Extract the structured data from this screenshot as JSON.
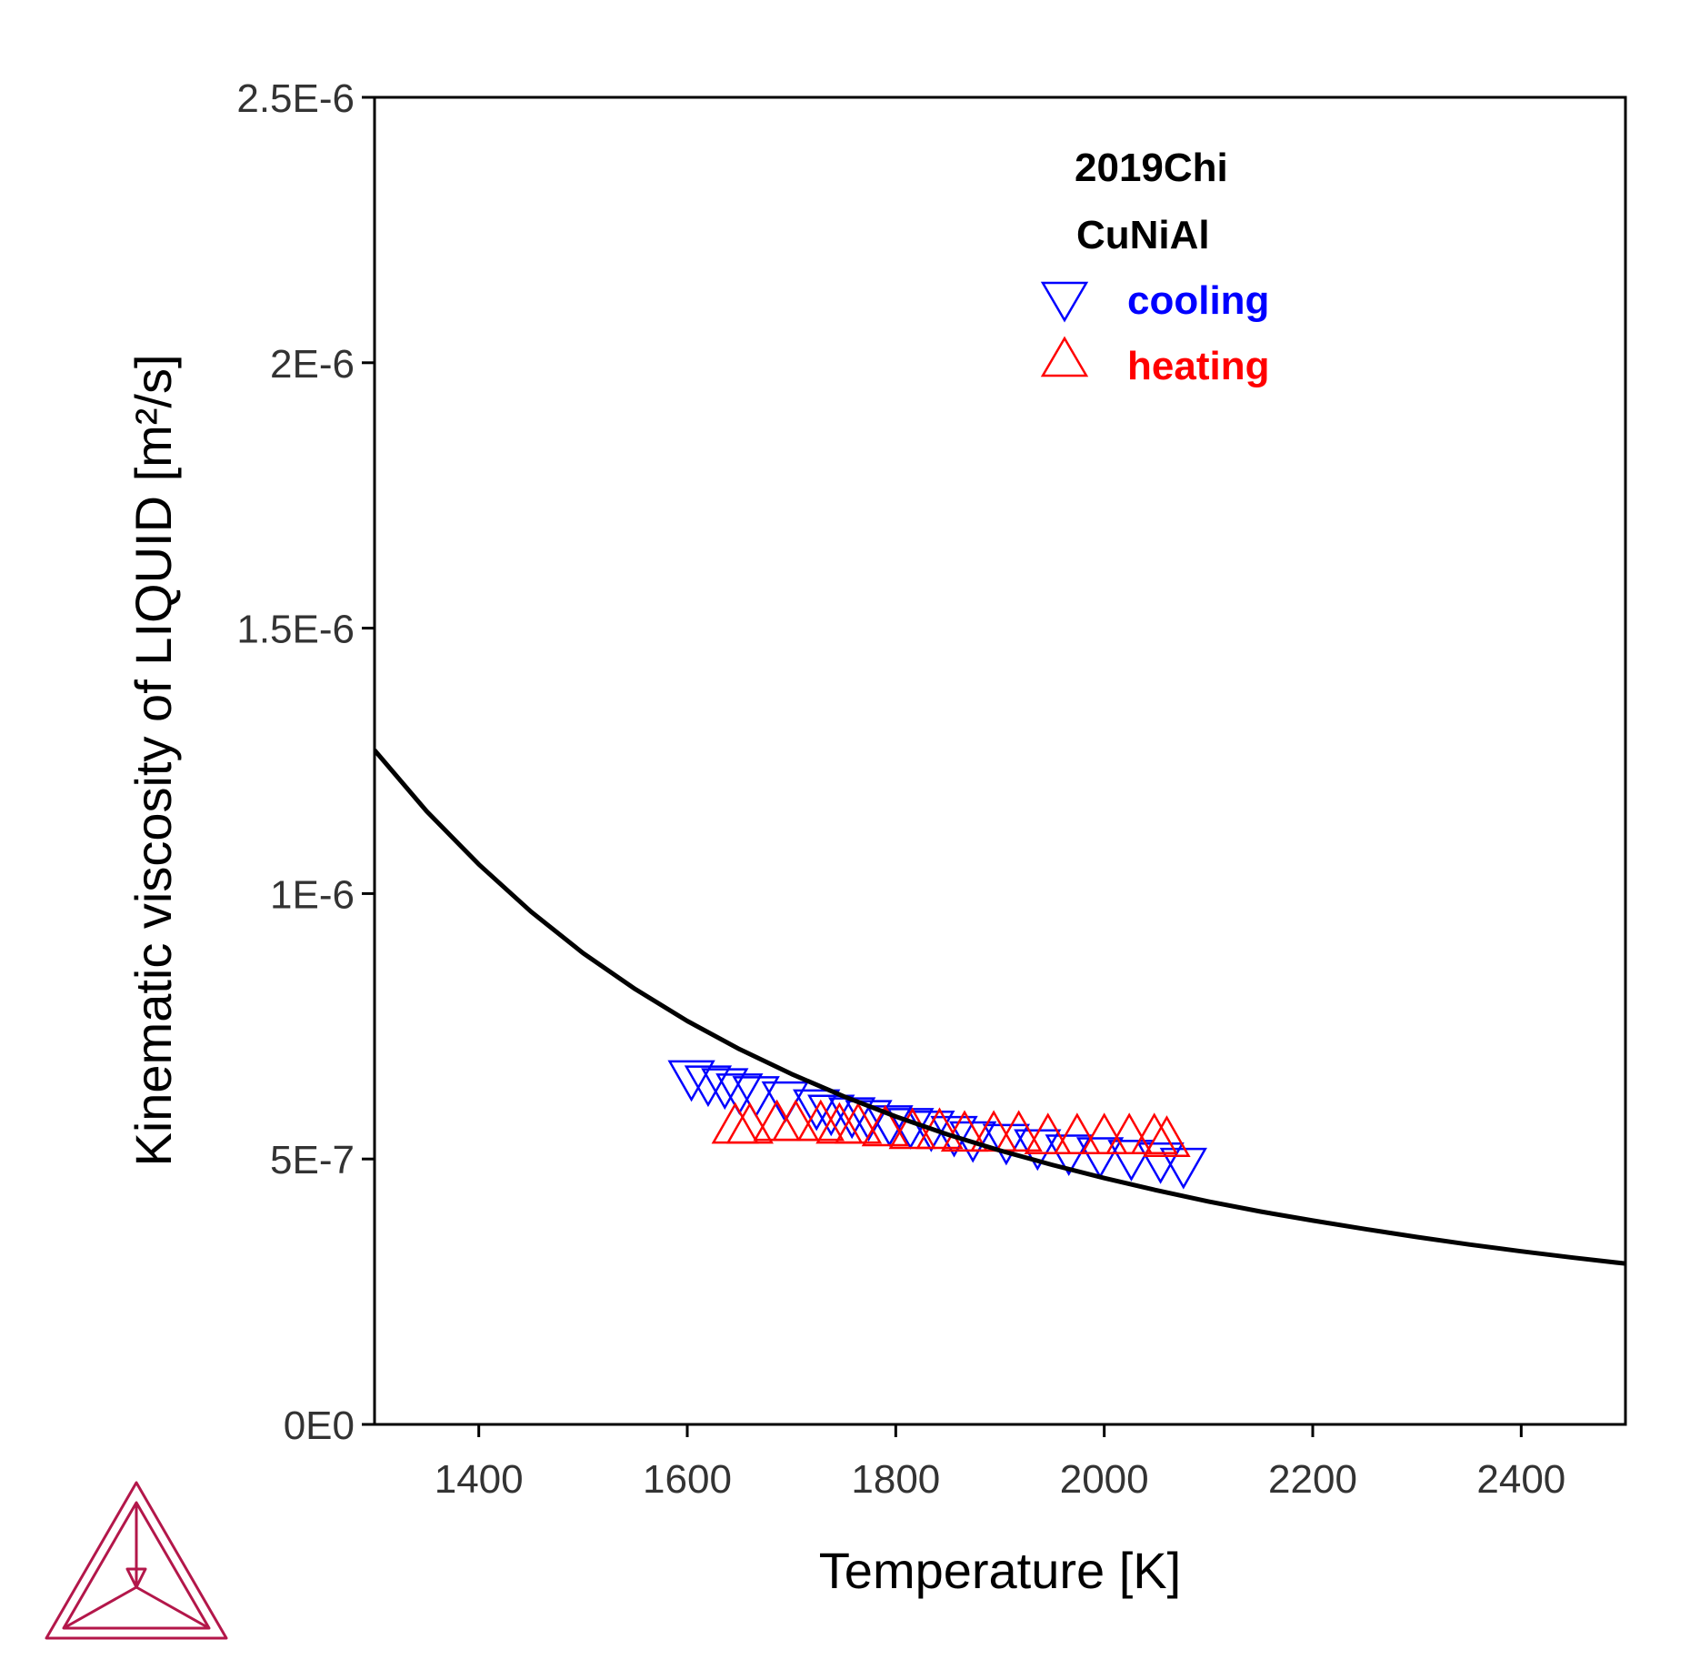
{
  "chart_data": {
    "type": "scatter",
    "xlabel": "Temperature [K]",
    "ylabel": "Kinematic viscosity of LIQUID [m²/s]",
    "xlim": [
      1300,
      2500
    ],
    "ylim": [
      0,
      2.5e-06
    ],
    "xticks": [
      1400,
      1600,
      1800,
      2000,
      2200,
      2400
    ],
    "xtick_labels": [
      "1400",
      "1600",
      "1800",
      "2000",
      "2200",
      "2400"
    ],
    "yticks": [
      0,
      5e-07,
      1e-06,
      1.5e-06,
      2e-06,
      2.5e-06
    ],
    "ytick_labels": [
      "0E0",
      "5E-7",
      "1E-6",
      "1.5E-6",
      "2E-6",
      "2.5E-6"
    ],
    "grid": false,
    "legend": {
      "placement": "top-right",
      "title_lines": [
        "2019Chi",
        "CuNiAl"
      ]
    },
    "curve": {
      "color": "#000000",
      "x": [
        1300,
        1350,
        1400,
        1450,
        1500,
        1550,
        1600,
        1650,
        1700,
        1750,
        1800,
        1850,
        1900,
        1950,
        2000,
        2050,
        2100,
        2150,
        2200,
        2250,
        2300,
        2350,
        2400,
        2450,
        2500
      ],
      "y": [
        1.27e-06,
        1.155e-06,
        1.055e-06,
        9.66e-07,
        8.88e-07,
        8.2e-07,
        7.6e-07,
        7.07e-07,
        6.6e-07,
        6.18e-07,
        5.8e-07,
        5.46e-07,
        5.16e-07,
        4.89e-07,
        4.64e-07,
        4.41e-07,
        4.2e-07,
        4.01e-07,
        3.84e-07,
        3.68e-07,
        3.53e-07,
        3.39e-07,
        3.26e-07,
        3.14e-07,
        3.03e-07
      ]
    },
    "series": [
      {
        "name": "cooling",
        "marker": "triangle-down",
        "color": "#0000ff",
        "x": [
          1604,
          1620,
          1636,
          1650,
          1666,
          1694,
          1724,
          1738,
          1758,
          1774,
          1794,
          1814,
          1834,
          1856,
          1874,
          1906,
          1936,
          1966,
          1996,
          2026,
          2054,
          2076
        ],
        "y": [
          6.6e-07,
          6.5e-07,
          6.45e-07,
          6.35e-07,
          6.3e-07,
          6.2e-07,
          6.05e-07,
          5.95e-07,
          5.9e-07,
          5.85e-07,
          5.75e-07,
          5.7e-07,
          5.65e-07,
          5.55e-07,
          5.45e-07,
          5.4e-07,
          5.3e-07,
          5.2e-07,
          5.15e-07,
          5.1e-07,
          5.05e-07,
          4.95e-07
        ]
      },
      {
        "name": "heating",
        "marker": "triangle-up",
        "color": "#ff0000",
        "x": [
          1646,
          1660,
          1686,
          1704,
          1728,
          1746,
          1764,
          1790,
          1816,
          1842,
          1866,
          1894,
          1918,
          1946,
          1974,
          2000,
          2024,
          2048,
          2060
        ],
        "y": [
          5.55e-07,
          5.55e-07,
          5.6e-07,
          5.6e-07,
          5.6e-07,
          5.55e-07,
          5.55e-07,
          5.5e-07,
          5.45e-07,
          5.45e-07,
          5.4e-07,
          5.4e-07,
          5.4e-07,
          5.35e-07,
          5.35e-07,
          5.35e-07,
          5.35e-07,
          5.35e-07,
          5.3e-07
        ]
      }
    ]
  },
  "logo": {
    "name": "Thermo-Calc",
    "color": "#b3174a"
  }
}
